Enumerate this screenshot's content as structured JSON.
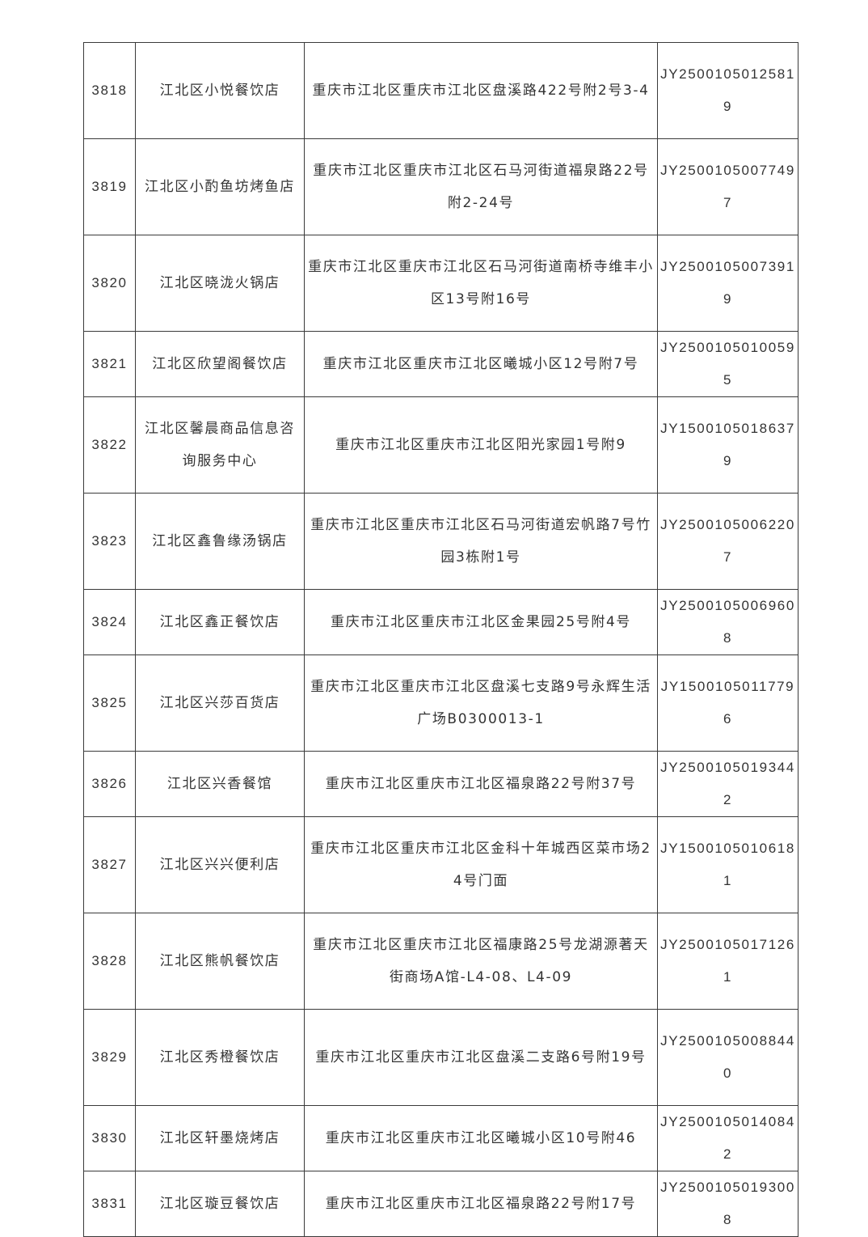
{
  "table": {
    "rows": [
      {
        "no": "3818",
        "name": "江北区小悦餐饮店",
        "address": "重庆市江北区重庆市江北区盘溪路422号附2号3-4",
        "license": "JY25001050125819"
      },
      {
        "no": "3819",
        "name": "江北区小酌鱼坊烤鱼店",
        "address": "重庆市江北区重庆市江北区石马河街道福泉路22号附2-24号",
        "license": "JY25001050077497"
      },
      {
        "no": "3820",
        "name": "江北区晓泷火锅店",
        "address": "重庆市江北区重庆市江北区石马河街道南桥寺维丰小区13号附16号",
        "license": "JY25001050073919"
      },
      {
        "no": "3821",
        "name": "江北区欣望阁餐饮店",
        "address": "重庆市江北区重庆市江北区曦城小区12号附7号",
        "license": "JY25001050100595"
      },
      {
        "no": "3822",
        "name": "江北区馨晨商品信息咨询服务中心",
        "address": "重庆市江北区重庆市江北区阳光家园1号附9",
        "license": "JY15001050186379"
      },
      {
        "no": "3823",
        "name": "江北区鑫鲁缘汤锅店",
        "address": "重庆市江北区重庆市江北区石马河街道宏帆路7号竹园3栋附1号",
        "license": "JY25001050062207"
      },
      {
        "no": "3824",
        "name": "江北区鑫正餐饮店",
        "address": "重庆市江北区重庆市江北区金果园25号附4号",
        "license": "JY25001050069608"
      },
      {
        "no": "3825",
        "name": "江北区兴莎百货店",
        "address": "重庆市江北区重庆市江北区盘溪七支路9号永辉生活广场B0300013-1",
        "license": "JY15001050117796"
      },
      {
        "no": "3826",
        "name": "江北区兴香餐馆",
        "address": "重庆市江北区重庆市江北区福泉路22号附37号",
        "license": "JY25001050193442"
      },
      {
        "no": "3827",
        "name": "江北区兴兴便利店",
        "address": "重庆市江北区重庆市江北区金科十年城西区菜市场24号门面",
        "license": "JY15001050106181"
      },
      {
        "no": "3828",
        "name": "江北区熊帆餐饮店",
        "address": "重庆市江北区重庆市江北区福康路25号龙湖源著天街商场A馆-L4-08、L4-09",
        "license": "JY25001050171261"
      },
      {
        "no": "3829",
        "name": "江北区秀橙餐饮店",
        "address": "重庆市江北区重庆市江北区盘溪二支路6号附19号",
        "license": "JY25001050088440"
      },
      {
        "no": "3830",
        "name": "江北区轩墨烧烤店",
        "address": "重庆市江北区重庆市江北区曦城小区10号附46",
        "license": "JY25001050140842"
      },
      {
        "no": "3831",
        "name": "江北区璇豆餐饮店",
        "address": "重庆市江北区重庆市江北区福泉路22号附17号",
        "license": "JY25001050193008"
      }
    ]
  }
}
